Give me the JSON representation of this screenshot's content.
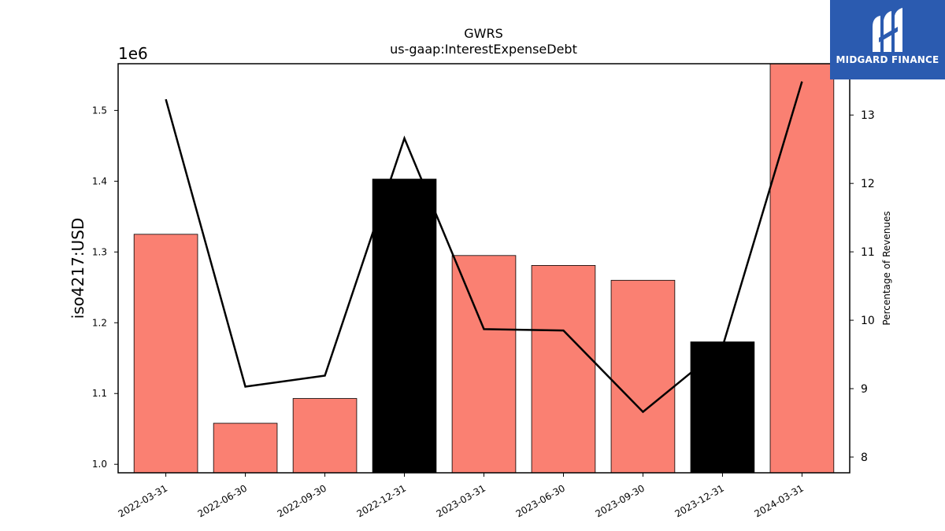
{
  "chart_data": {
    "type": "bar",
    "title": "GWRS",
    "subtitle": "us-gaap:InterestExpenseDebt",
    "ylabel": "iso4217:USD",
    "y_offset_label": "1e6",
    "y2label": "Percentage of Revenues",
    "categories": [
      "2022-03-31",
      "2022-06-30",
      "2022-09-30",
      "2022-12-31",
      "2023-03-31",
      "2023-06-30",
      "2023-09-30",
      "2023-12-31",
      "2024-03-31"
    ],
    "values": [
      1325000,
      1058000,
      1093000,
      1403000,
      1295000,
      1281000,
      1260000,
      1173000,
      1567000
    ],
    "bar_colors": [
      "#fa8072",
      "#fa8072",
      "#fa8072",
      "#000000",
      "#fa8072",
      "#fa8072",
      "#fa8072",
      "#000000",
      "#fa8072"
    ],
    "line_values": [
      13.23,
      9.03,
      9.19,
      12.66,
      9.87,
      9.85,
      8.66,
      9.61,
      13.49
    ],
    "line_color": "#000000",
    "ylim": [
      988000,
      1566000
    ],
    "y_ticks": [
      1.0,
      1.1,
      1.2,
      1.3,
      1.4,
      1.5
    ],
    "y_tick_scale": 1000000,
    "y2lim": [
      7.77,
      13.75
    ],
    "y2_ticks": [
      8,
      9,
      10,
      11,
      12,
      13
    ]
  },
  "logo": {
    "text": "MIDGARD FINANCE"
  }
}
